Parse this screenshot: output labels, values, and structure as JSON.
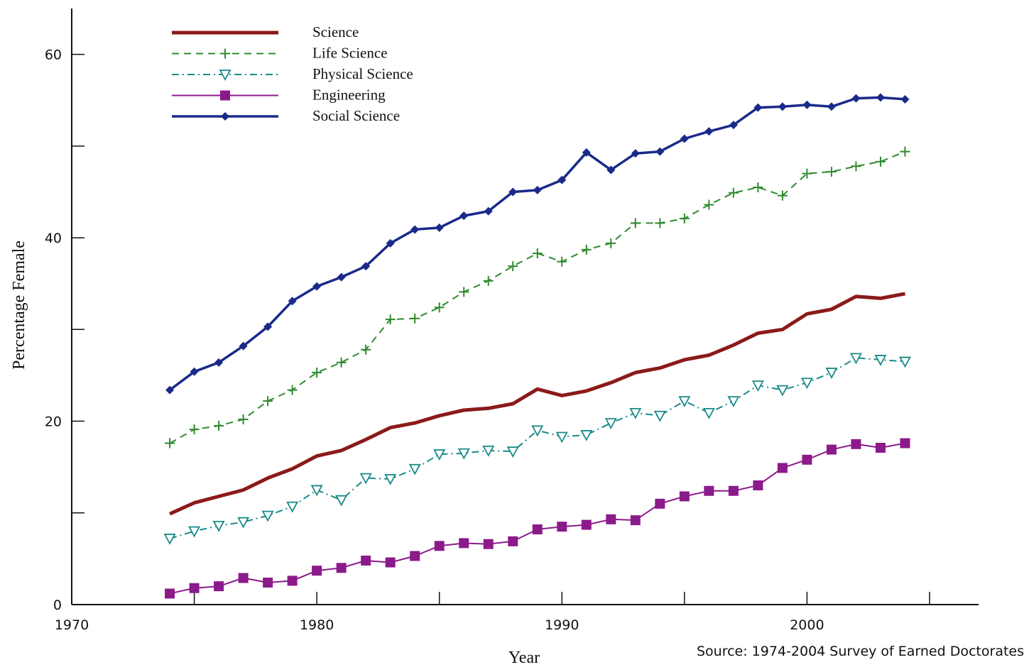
{
  "chart_data": {
    "type": "line",
    "xlabel": "Year",
    "ylabel": "Percentage Female",
    "source": "Source:  1974-2004 Survey of Earned Doctorates",
    "xlim": [
      1970,
      2007
    ],
    "ylim": [
      0,
      65
    ],
    "x_ticks": [
      1970,
      1980,
      1990,
      2000
    ],
    "y_ticks": [
      0,
      20,
      40,
      60
    ],
    "grid": false,
    "legend_position": "top-left",
    "x": [
      1974,
      1975,
      1976,
      1977,
      1978,
      1979,
      1980,
      1981,
      1982,
      1983,
      1984,
      1985,
      1986,
      1987,
      1988,
      1989,
      1990,
      1991,
      1992,
      1993,
      1994,
      1995,
      1996,
      1997,
      1998,
      1999,
      2000,
      2001,
      2002,
      2003,
      2004
    ],
    "series": [
      {
        "name": "Science",
        "color": "#8b1a1a",
        "style": "solid-thick",
        "marker": "none",
        "values": [
          9.9,
          11.1,
          11.8,
          12.5,
          13.8,
          14.8,
          16.2,
          16.8,
          18.0,
          19.3,
          19.8,
          20.6,
          21.2,
          21.4,
          21.9,
          23.5,
          22.8,
          23.3,
          24.2,
          25.3,
          25.8,
          26.7,
          27.2,
          28.3,
          29.6,
          30.0,
          31.7,
          32.2,
          33.6,
          33.4,
          33.9
        ]
      },
      {
        "name": "Life Science",
        "color": "#2e8b2e",
        "style": "dashed",
        "marker": "plus",
        "values": [
          17.6,
          19.1,
          19.5,
          20.2,
          22.2,
          23.4,
          25.3,
          26.4,
          27.8,
          31.1,
          31.2,
          32.4,
          34.1,
          35.3,
          36.9,
          38.3,
          37.4,
          38.7,
          39.4,
          41.6,
          41.6,
          42.1,
          43.6,
          44.9,
          45.5,
          44.6,
          47.0,
          47.2,
          47.8,
          48.3,
          49.4
        ]
      },
      {
        "name": "Physical Science",
        "color": "#1a8a8a",
        "style": "dashdot",
        "marker": "triangle-down",
        "values": [
          7.2,
          8.0,
          8.6,
          9.0,
          9.7,
          10.7,
          12.5,
          11.4,
          13.8,
          13.7,
          14.8,
          16.4,
          16.5,
          16.8,
          16.7,
          19.0,
          18.3,
          18.5,
          19.8,
          20.9,
          20.6,
          22.2,
          20.9,
          22.2,
          23.9,
          23.4,
          24.2,
          25.3,
          26.9,
          26.7,
          26.5
        ]
      },
      {
        "name": "Engineering",
        "color": "#8b1a8b",
        "style": "solid",
        "marker": "square",
        "values": [
          1.2,
          1.8,
          2.0,
          2.9,
          2.4,
          2.6,
          3.7,
          4.0,
          4.8,
          4.6,
          5.3,
          6.4,
          6.7,
          6.6,
          6.9,
          8.2,
          8.5,
          8.7,
          9.3,
          9.2,
          11.0,
          11.8,
          12.4,
          12.4,
          13.0,
          14.9,
          15.8,
          16.9,
          17.5,
          17.1,
          17.6
        ]
      },
      {
        "name": "Social Science",
        "color": "#1a2a8a",
        "style": "solid",
        "marker": "diamond",
        "values": [
          23.4,
          25.4,
          26.4,
          28.2,
          30.3,
          33.1,
          34.7,
          35.7,
          36.9,
          39.4,
          40.9,
          41.1,
          42.4,
          42.9,
          45.0,
          45.2,
          46.3,
          49.3,
          47.4,
          49.2,
          49.4,
          50.8,
          51.6,
          52.3,
          54.2,
          54.3,
          54.5,
          54.3,
          55.2,
          55.3,
          55.1
        ]
      }
    ]
  }
}
